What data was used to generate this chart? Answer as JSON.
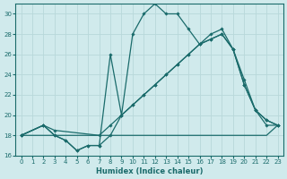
{
  "title": "",
  "xlabel": "Humidex (Indice chaleur)",
  "ylabel": "",
  "bg_color": "#d0eaec",
  "line_color": "#1a6b6b",
  "grid_color": "#b8d8da",
  "xlim": [
    -0.5,
    23.5
  ],
  "ylim": [
    16,
    31
  ],
  "xticks": [
    0,
    1,
    2,
    3,
    4,
    5,
    6,
    7,
    8,
    9,
    10,
    11,
    12,
    13,
    14,
    15,
    16,
    17,
    18,
    19,
    20,
    21,
    22,
    23
  ],
  "yticks": [
    16,
    18,
    20,
    22,
    24,
    26,
    28,
    30
  ],
  "lines": [
    {
      "x": [
        0,
        1,
        2,
        3,
        4,
        5,
        6,
        7,
        8,
        9,
        10,
        11,
        12,
        13,
        14,
        15,
        16,
        17,
        18,
        19,
        20,
        21,
        22,
        23
      ],
      "y": [
        18,
        18,
        18,
        18,
        18,
        18,
        18,
        18,
        18,
        18,
        18,
        18,
        18,
        18,
        18,
        18,
        18,
        18,
        18,
        18,
        18,
        18,
        18,
        19
      ],
      "marker": false
    },
    {
      "x": [
        0,
        2,
        3,
        7,
        8,
        9,
        10,
        11,
        12,
        13,
        14,
        15,
        16,
        17,
        18,
        19,
        20,
        21,
        22,
        23
      ],
      "y": [
        18,
        19,
        18.5,
        18,
        19,
        20,
        21,
        22,
        23,
        24,
        25,
        26,
        27,
        27.5,
        28,
        26.5,
        23,
        20.5,
        19.5,
        19
      ],
      "marker": true
    },
    {
      "x": [
        0,
        2,
        3,
        4,
        5,
        6,
        7,
        8,
        9,
        10,
        11,
        12,
        13,
        14,
        15,
        16,
        17,
        18,
        19,
        20,
        21,
        22,
        23
      ],
      "y": [
        18,
        19,
        18,
        17.5,
        16.5,
        17,
        17,
        18,
        20,
        21,
        22,
        23,
        24,
        25,
        26,
        27,
        27.5,
        28,
        26.5,
        23,
        20.5,
        19.5,
        19
      ],
      "marker": true
    },
    {
      "x": [
        0,
        2,
        3,
        4,
        5,
        6,
        7,
        8,
        9,
        10,
        11,
        12,
        13,
        14,
        15,
        16,
        17,
        18,
        19,
        20,
        21,
        22,
        23
      ],
      "y": [
        18,
        19,
        18,
        17.5,
        16.5,
        17,
        17,
        26,
        20,
        28,
        30,
        31,
        30,
        30,
        28.5,
        27,
        28,
        28.5,
        26.5,
        23.5,
        20.5,
        19,
        19
      ],
      "marker": true
    }
  ]
}
